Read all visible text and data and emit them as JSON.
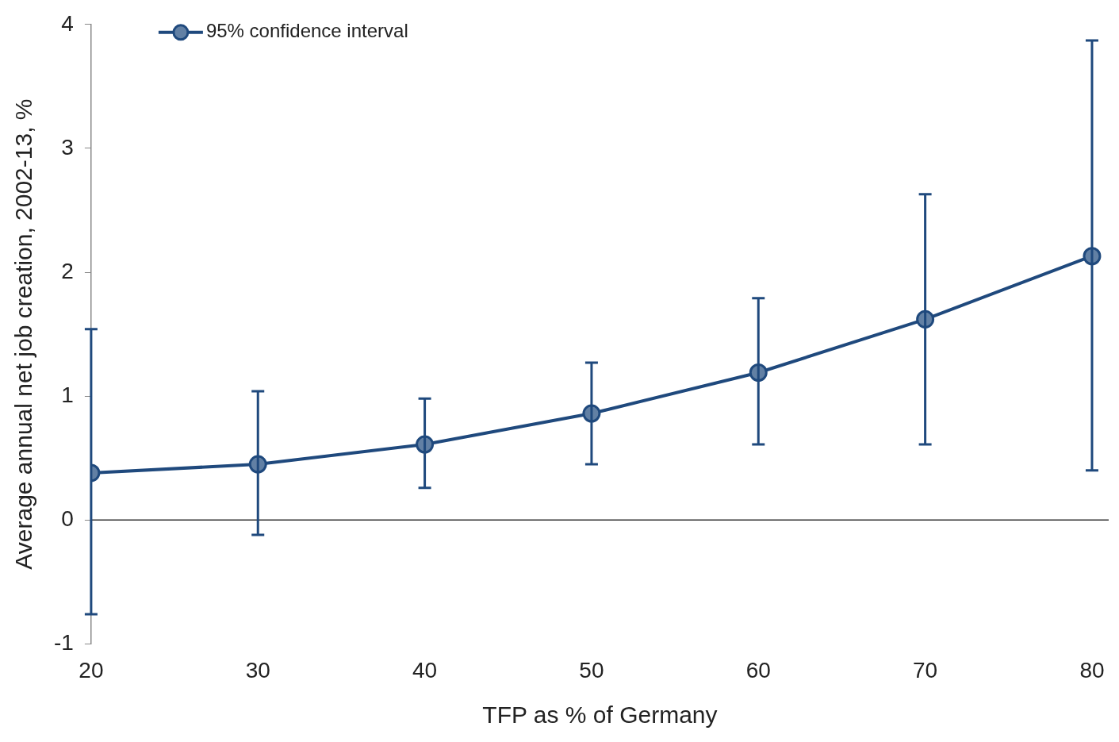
{
  "chart_data": {
    "type": "line",
    "xlabel": "TFP as % of Germany",
    "ylabel": "Average annual net job creation, 2002-13, %",
    "x": [
      20,
      30,
      40,
      50,
      60,
      70,
      80
    ],
    "series": [
      {
        "name": "95% confidence interval",
        "color": "#1f497d",
        "values": [
          0.38,
          0.45,
          0.61,
          0.86,
          1.19,
          1.62,
          2.13
        ],
        "errors": [
          [
            -0.76,
            1.54
          ],
          [
            -0.12,
            1.04
          ],
          [
            0.26,
            0.98
          ],
          [
            0.45,
            1.27
          ],
          [
            0.61,
            1.79
          ],
          [
            0.61,
            2.63
          ],
          [
            0.4,
            3.87
          ]
        ]
      }
    ],
    "xlim": [
      20,
      81
    ],
    "xticks": [
      20,
      30,
      40,
      50,
      60,
      70,
      80
    ],
    "ylim": [
      -1,
      4
    ],
    "yticks": [
      -1,
      0,
      1,
      2,
      3,
      4
    ],
    "ref_lines": [
      {
        "axis": "y",
        "value": 0,
        "color": "#333333"
      }
    ],
    "grid": false,
    "legend": "top left",
    "marker": "circle",
    "line_style": "solid"
  }
}
